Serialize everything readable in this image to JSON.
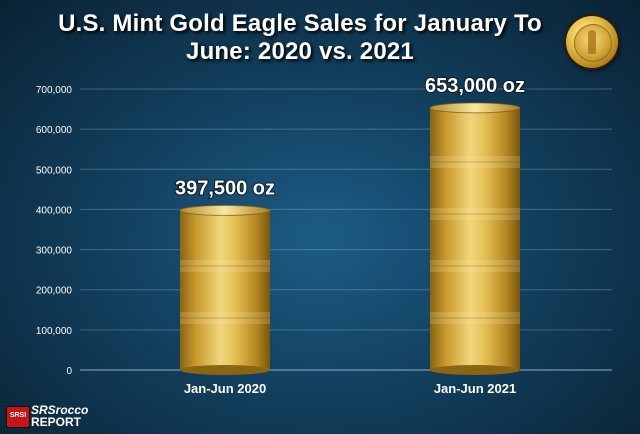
{
  "header": {
    "title_line1": "U.S. Mint Gold Eagle Sales for January To",
    "title_line2": "June:  2020 vs. 2021"
  },
  "logo": {
    "badge": "SRSI",
    "line1": "SRSrocco",
    "line2": "REPORT"
  },
  "icons": {
    "coin": "gold-eagle-coin-icon"
  },
  "colors": {
    "background": "#12405f",
    "bar_gold": "#d9b545",
    "label": "#ffffff"
  },
  "chart_data": {
    "type": "bar",
    "title": "U.S. Mint Gold Eagle Sales for January To June:  2020 vs. 2021",
    "xlabel": "",
    "ylabel": "",
    "categories": [
      "Jan-Jun 2020",
      "Jan-Jun 2021"
    ],
    "values": [
      397500,
      653000
    ],
    "data_labels": [
      "397,500 oz",
      "653,000 oz"
    ],
    "ylim": [
      0,
      700000
    ],
    "yticks": [
      0,
      100000,
      200000,
      300000,
      400000,
      500000,
      600000,
      700000
    ],
    "ytick_labels": [
      "0",
      "100,000",
      "200,000",
      "300,000",
      "400,000",
      "500,000",
      "600,000",
      "700,000"
    ],
    "grid": true,
    "legend": "none"
  }
}
